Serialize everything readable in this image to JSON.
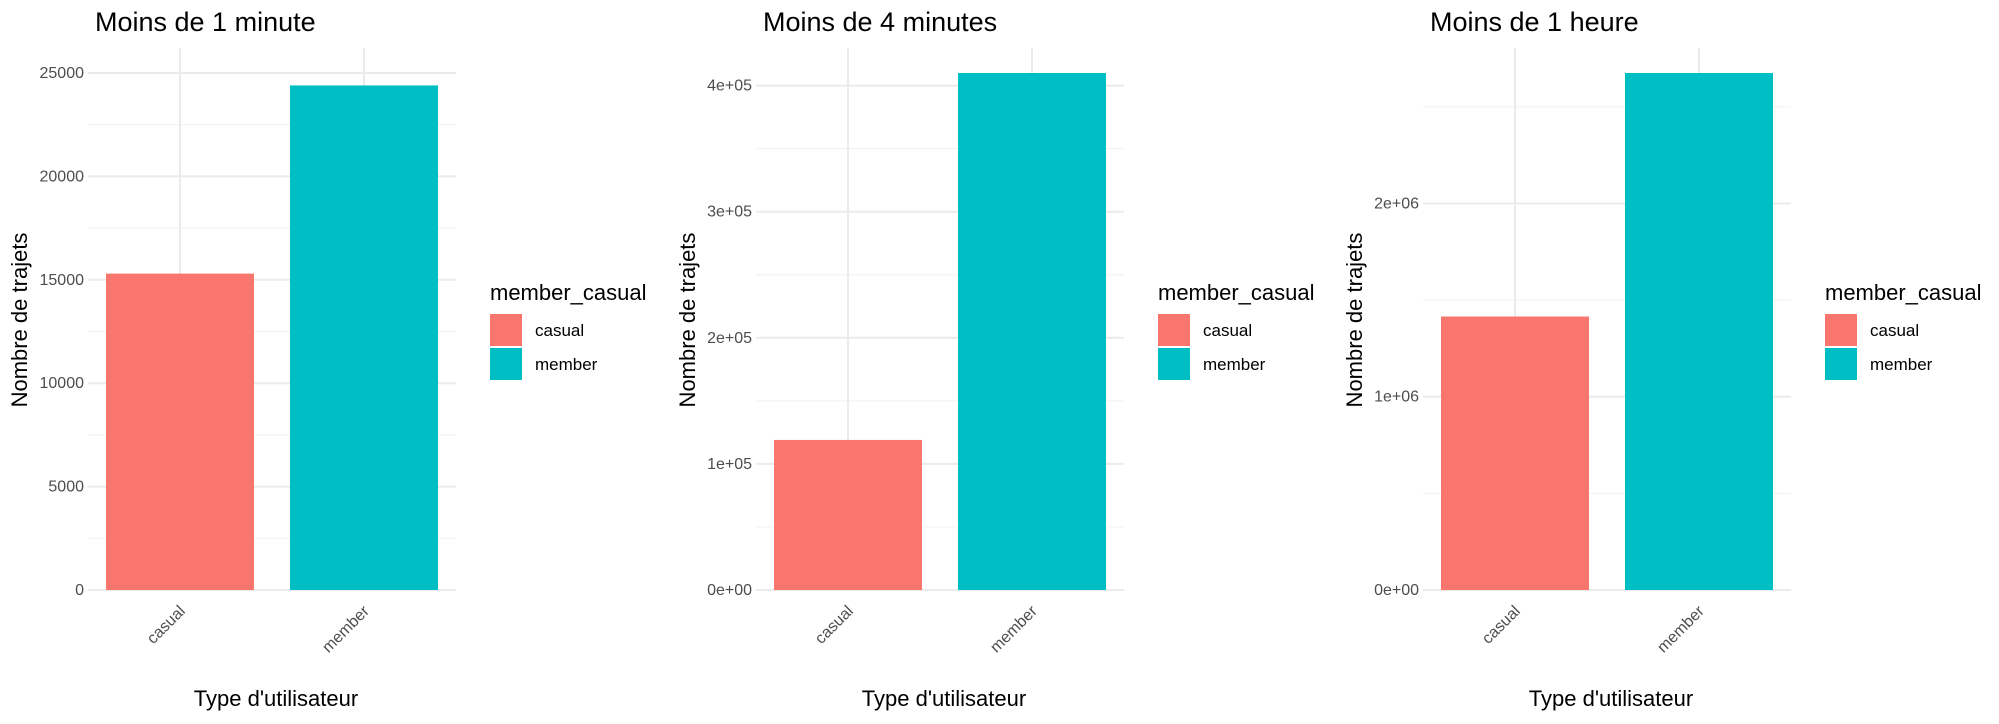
{
  "chart_data": [
    {
      "type": "bar",
      "title": "Moins de 1 minute",
      "xlabel": "Type d'utilisateur",
      "ylabel": "Nombre de trajets",
      "categories": [
        "casual",
        "member"
      ],
      "values": [
        15300,
        24400
      ],
      "ylim": [
        0,
        25000
      ],
      "yticks": [
        0,
        5000,
        10000,
        15000,
        20000,
        25000
      ],
      "ytick_labels": [
        "0",
        "5000",
        "10000",
        "15000",
        "20000",
        "25000"
      ],
      "legend": {
        "title": "member_casual",
        "placement": "right",
        "entries": [
          "casual",
          "member"
        ]
      },
      "grid": true
    },
    {
      "type": "bar",
      "title": "Moins de 4 minutes",
      "xlabel": "Type d'utilisateur",
      "ylabel": "Nombre de trajets",
      "categories": [
        "casual",
        "member"
      ],
      "values": [
        119000,
        410000
      ],
      "ylim": [
        0,
        410000
      ],
      "yticks": [
        0,
        100000,
        200000,
        300000,
        400000
      ],
      "ytick_labels": [
        "0e+00",
        "1e+05",
        "2e+05",
        "3e+05",
        "4e+05"
      ],
      "legend": {
        "title": "member_casual",
        "placement": "right",
        "entries": [
          "casual",
          "member"
        ]
      },
      "grid": true
    },
    {
      "type": "bar",
      "title": "Moins de 1 heure",
      "xlabel": "Type d'utilisateur",
      "ylabel": "Nombre de trajets",
      "categories": [
        "casual",
        "member"
      ],
      "values": [
        1415000,
        2675000
      ],
      "ylim": [
        0,
        2675000
      ],
      "yticks": [
        0,
        1000000,
        2000000
      ],
      "ytick_labels": [
        "0e+00",
        "1e+06",
        "2e+06"
      ],
      "legend": {
        "title": "member_casual",
        "placement": "right",
        "entries": [
          "casual",
          "member"
        ]
      },
      "grid": true
    }
  ],
  "colors": {
    "casual": "#F8766D",
    "member": "#00BFC4"
  }
}
